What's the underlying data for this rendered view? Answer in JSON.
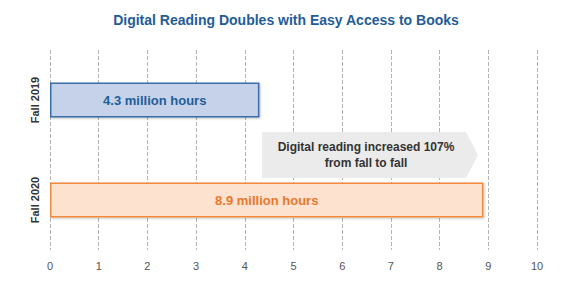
{
  "chart_data": {
    "type": "bar",
    "title": "Digital Reading Doubles with Easy Access to Books",
    "orientation": "horizontal",
    "categories": [
      "Fall 2019",
      "Fall 2020"
    ],
    "values": [
      4.3,
      8.9
    ],
    "value_labels": [
      "4.3 million hours",
      "8.9 million hours"
    ],
    "data_labels": true,
    "colors": [
      "#c5d2e9",
      "#fde2cf"
    ],
    "xlim": [
      0,
      10
    ],
    "xticks": [
      0,
      1,
      2,
      3,
      4,
      5,
      6,
      7,
      8,
      9,
      10
    ],
    "grid": true,
    "annotation": "Digital reading increased 107%\nfrom fall to fall"
  }
}
